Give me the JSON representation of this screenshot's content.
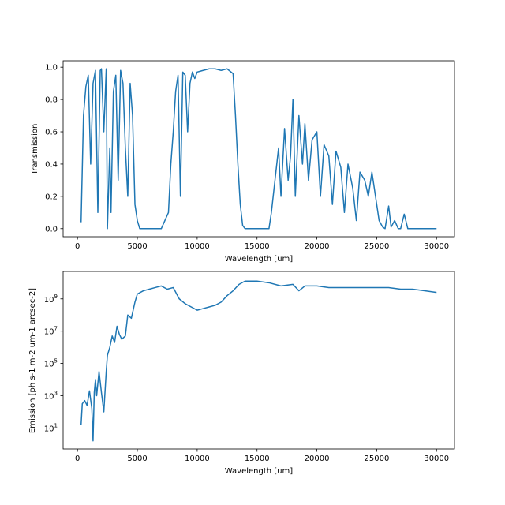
{
  "colors": {
    "series": "#1f77b4",
    "axes": "#000000",
    "background": "#ffffff"
  },
  "chart_data": [
    {
      "type": "line",
      "title": "",
      "xlabel": "Wavelength [um]",
      "ylabel": "Transmission",
      "xlim": [
        -1200,
        31500
      ],
      "ylim": [
        -0.05,
        1.04
      ],
      "xticks": [
        0,
        5000,
        10000,
        15000,
        20000,
        25000,
        30000
      ],
      "xtick_labels": [
        "0",
        "5000",
        "10000",
        "15000",
        "20000",
        "25000",
        "30000"
      ],
      "yticks": [
        0.0,
        0.2,
        0.4,
        0.6,
        0.8,
        1.0
      ],
      "ytick_labels": [
        "0.0",
        "0.2",
        "0.4",
        "0.6",
        "0.8",
        "1.0"
      ],
      "grid": false,
      "series": [
        {
          "x": [
            300,
            500,
            700,
            900,
            1100,
            1300,
            1500,
            1700,
            1900,
            2000,
            2200,
            2400,
            2500,
            2700,
            2800,
            3000,
            3200,
            3400,
            3600,
            3800,
            4000,
            4200,
            4400,
            4600,
            4800,
            5000,
            5200,
            5500,
            6000,
            6500,
            7000,
            7300,
            7600,
            7800,
            8000,
            8200,
            8400,
            8600,
            8800,
            9000,
            9200,
            9400,
            9600,
            9800,
            10000,
            10500,
            11000,
            11500,
            12000,
            12500,
            13000,
            13200,
            13400,
            13600,
            13800,
            14000,
            15000,
            16000,
            16200,
            16500,
            16800,
            17000,
            17300,
            17600,
            17800,
            18000,
            18200,
            18500,
            18800,
            19000,
            19300,
            19600,
            20000,
            20300,
            20600,
            21000,
            21300,
            21600,
            22000,
            22300,
            22600,
            23000,
            23300,
            23600,
            24000,
            24300,
            24600,
            24900,
            25200,
            25500,
            25700,
            26000,
            26200,
            26500,
            26800,
            27000,
            27300,
            27600,
            28000,
            29000,
            30000
          ],
          "y": [
            0.04,
            0.7,
            0.88,
            0.95,
            0.4,
            0.9,
            0.98,
            0.1,
            0.98,
            0.99,
            0.6,
            0.99,
            0.0,
            0.5,
            0.1,
            0.85,
            0.95,
            0.3,
            0.98,
            0.9,
            0.5,
            0.2,
            0.9,
            0.7,
            0.15,
            0.05,
            0.0,
            0.0,
            0.0,
            0.0,
            0.0,
            0.05,
            0.1,
            0.4,
            0.6,
            0.85,
            0.95,
            0.2,
            0.97,
            0.95,
            0.6,
            0.9,
            0.97,
            0.93,
            0.97,
            0.98,
            0.99,
            0.99,
            0.98,
            0.99,
            0.96,
            0.7,
            0.4,
            0.15,
            0.02,
            0.0,
            0.0,
            0.0,
            0.1,
            0.3,
            0.5,
            0.2,
            0.62,
            0.3,
            0.45,
            0.8,
            0.2,
            0.7,
            0.4,
            0.65,
            0.3,
            0.55,
            0.6,
            0.2,
            0.52,
            0.45,
            0.15,
            0.48,
            0.38,
            0.1,
            0.4,
            0.25,
            0.05,
            0.35,
            0.3,
            0.2,
            0.35,
            0.2,
            0.05,
            0.01,
            0.0,
            0.14,
            0.01,
            0.05,
            0.0,
            0.0,
            0.09,
            0.0,
            0.0,
            0.0,
            0.0
          ]
        }
      ]
    },
    {
      "type": "line",
      "title": "",
      "xlabel": "Wavelength [um]",
      "ylabel": "Emission [ph s-1 m-2 um-1 arcsec-2]",
      "xlim": [
        -1200,
        31500
      ],
      "ylim_log10": [
        -0.3,
        10.7
      ],
      "y_scale": "log",
      "xticks": [
        0,
        5000,
        10000,
        15000,
        20000,
        25000,
        30000
      ],
      "xtick_labels": [
        "0",
        "5000",
        "10000",
        "15000",
        "20000",
        "25000",
        "30000"
      ],
      "yticks_log10": [
        1,
        3,
        5,
        7,
        9
      ],
      "ytick_bases": [
        "10",
        "10",
        "10",
        "10",
        "10"
      ],
      "ytick_exponents": [
        "1",
        "3",
        "5",
        "7",
        "9"
      ],
      "grid": false,
      "series": [
        {
          "x": [
            300,
            400,
            600,
            800,
            1000,
            1200,
            1300,
            1400,
            1500,
            1600,
            1800,
            2000,
            2200,
            2400,
            2500,
            2700,
            2900,
            3100,
            3300,
            3500,
            3700,
            4000,
            4200,
            4500,
            4800,
            5000,
            5500,
            6000,
            6500,
            7000,
            7500,
            8000,
            8500,
            9000,
            9500,
            10000,
            10500,
            11000,
            11500,
            12000,
            12500,
            13000,
            13500,
            14000,
            15000,
            16000,
            17000,
            18000,
            18500,
            19000,
            20000,
            21000,
            22000,
            23000,
            24000,
            25000,
            26000,
            27000,
            28000,
            29000,
            30000
          ],
          "y_log10": [
            1.2,
            2.5,
            2.7,
            2.4,
            3.3,
            2.2,
            0.2,
            3.2,
            4.0,
            3.0,
            4.5,
            3.2,
            2.0,
            4.5,
            5.5,
            6.0,
            6.7,
            6.3,
            7.3,
            6.8,
            6.5,
            6.7,
            8.0,
            7.8,
            8.8,
            9.3,
            9.5,
            9.6,
            9.7,
            9.8,
            9.6,
            9.7,
            9.0,
            8.7,
            8.5,
            8.3,
            8.4,
            8.5,
            8.6,
            8.8,
            9.2,
            9.5,
            9.9,
            10.1,
            10.1,
            10.0,
            9.8,
            9.9,
            9.5,
            9.8,
            9.8,
            9.7,
            9.7,
            9.7,
            9.7,
            9.7,
            9.7,
            9.6,
            9.6,
            9.5,
            9.4
          ]
        }
      ]
    }
  ]
}
